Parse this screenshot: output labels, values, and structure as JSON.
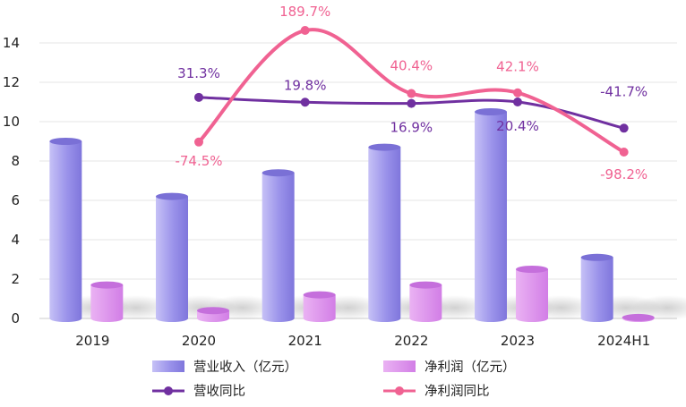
{
  "chart_data": {
    "type": "bar",
    "categories": [
      "2019",
      "2020",
      "2021",
      "2022",
      "2023",
      "2024H1"
    ],
    "y_left": {
      "range": [
        0,
        15
      ],
      "ticks": [
        0,
        2,
        4,
        6,
        8,
        10,
        12,
        14
      ]
    },
    "grid": true,
    "legend_position": "bottom",
    "series": [
      {
        "name": "营业收入（亿元）",
        "kind": "bar",
        "color": "#9b93ea",
        "values": [
          9.0,
          6.2,
          7.4,
          8.7,
          10.5,
          3.1
        ]
      },
      {
        "name": "净利润（亿元）",
        "kind": "bar",
        "color": "#d98be9",
        "values": [
          1.7,
          0.4,
          1.2,
          1.7,
          2.5,
          0.05
        ]
      },
      {
        "name": "营收同比",
        "kind": "line",
        "color": "#7030a0",
        "values": [
          null,
          31.3,
          19.8,
          16.9,
          20.4,
          -41.7
        ],
        "labels": [
          null,
          "31.3%",
          "19.8%",
          "16.9%",
          "20.4%",
          "-41.7%"
        ]
      },
      {
        "name": "净利润同比",
        "kind": "line",
        "color": "#f06292",
        "values": [
          null,
          -74.5,
          189.7,
          40.4,
          42.1,
          -98.2
        ],
        "labels": [
          null,
          "-74.5%",
          "189.7%",
          "40.4%",
          "42.1%",
          "-98.2%"
        ]
      }
    ]
  }
}
